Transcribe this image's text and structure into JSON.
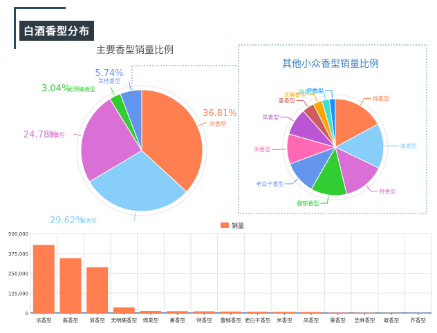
{
  "header": {
    "title": "白酒香型分布"
  },
  "colors": {
    "orange": "#ff7f50",
    "lightblue": "#87cefa",
    "orchid": "#da70d6",
    "green": "#32cd32",
    "blue": "#6495ed",
    "pink": "#ff69b4",
    "purple": "#ba55d3",
    "red": "#cd5c5c",
    "gold": "#ffa500",
    "teal": "#40e0d0",
    "connector": "#6699cc",
    "box_border": "#6699cc"
  },
  "chart_data": [
    {
      "type": "pie",
      "title": "主要香型销量比例",
      "slices": [
        {
          "label": "浓香型",
          "percent_label": "36.81%",
          "value": 36.81,
          "color": "#ff7f50"
        },
        {
          "label": "酱香型",
          "percent_label": "29.62%",
          "value": 29.62,
          "color": "#87cefa"
        },
        {
          "label": "清香型",
          "percent_label": "24.78%",
          "value": 24.78,
          "color": "#da70d6"
        },
        {
          "label": "无明确香型",
          "percent_label": "3.04%",
          "value": 3.04,
          "color": "#32cd32"
        },
        {
          "label": "其他香型",
          "percent_label": "5.74%",
          "value": 5.74,
          "color": "#6495ed"
        }
      ]
    },
    {
      "type": "pie",
      "title": "其他小众香型销量比例",
      "slices": [
        {
          "label": "绵柔型",
          "value": 17,
          "color": "#ff7f50"
        },
        {
          "label": "兼香型",
          "value": 15,
          "color": "#87cefa"
        },
        {
          "label": "特香型",
          "value": 14,
          "color": "#da70d6"
        },
        {
          "label": "馥郁香型",
          "value": 12,
          "color": "#32cd32"
        },
        {
          "label": "老白干香型",
          "value": 11,
          "color": "#6495ed"
        },
        {
          "label": "米香型",
          "value": 10,
          "color": "#ff69b4"
        },
        {
          "label": "凤香型",
          "value": 9,
          "color": "#ba55d3"
        },
        {
          "label": "董香型",
          "value": 4,
          "color": "#cd5c5c"
        },
        {
          "label": "芝麻香型",
          "value": 3,
          "color": "#ffa500"
        },
        {
          "label": "豉香型",
          "value": 2.5,
          "color": "#40e0d0"
        },
        {
          "label": "芥香型",
          "value": 2,
          "color": "#1e90ff"
        }
      ]
    },
    {
      "type": "bar",
      "legend": "销量",
      "color": "#ff7f50",
      "categories": [
        "浓香型",
        "酱香型",
        "清香型",
        "无明确香型",
        "绵柔型",
        "兼香型",
        "特香型",
        "馥郁香型",
        "老白干香型",
        "米香型",
        "凤香型",
        "董香型",
        "芝麻香型",
        "豉香型",
        "芥香型"
      ],
      "values": [
        428000,
        345000,
        288000,
        35000,
        13000,
        11500,
        10500,
        9000,
        8000,
        7000,
        6000,
        2500,
        2000,
        1500,
        1000
      ],
      "y_ticks": [
        "0",
        "125,000",
        "250,000",
        "375,000",
        "500,000"
      ],
      "ylim": [
        0,
        500000
      ]
    }
  ]
}
